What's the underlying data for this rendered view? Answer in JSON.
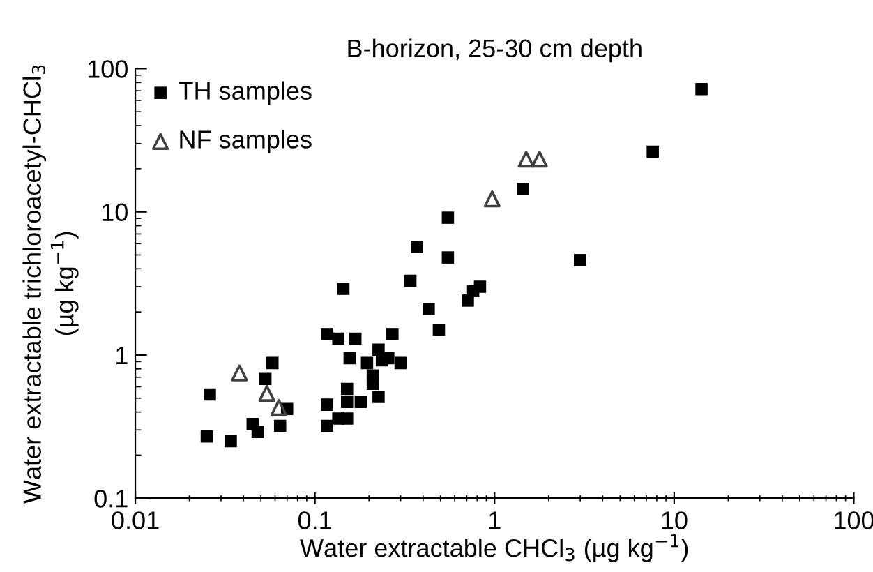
{
  "chart_data": {
    "type": "scatter",
    "title": "B-horizon, 25-30 cm depth",
    "xlabel": "Water extractable CHCl$_{3}$ (µg kg$^{−1}$)",
    "ylabel": "Water extractable trichloroacetyl-CHCl$_{3}$\n(µg kg$^{−1}$)",
    "log": "xy",
    "xlim": [
      0.01,
      100
    ],
    "ylim": [
      0.1,
      100
    ],
    "xticks": [
      0.01,
      0.1,
      1,
      10,
      100
    ],
    "yticks": [
      0.1,
      1,
      10,
      100
    ],
    "grid": false,
    "legend": "top left",
    "series": [
      {
        "name": "TH samples",
        "color": "#000000",
        "marker": "square",
        "x": [
          14.2,
          7.6,
          1.44,
          2.99,
          0.55,
          0.37,
          0.55,
          0.34,
          0.83,
          0.76,
          0.71,
          0.43,
          0.49,
          0.144,
          0.117,
          0.135,
          0.168,
          0.27,
          0.226,
          0.156,
          0.195,
          0.236,
          0.256,
          0.3,
          0.21,
          0.21,
          0.151,
          0.117,
          0.151,
          0.18,
          0.226,
          0.135,
          0.151,
          0.117,
          0.058,
          0.053,
          0.026,
          0.07,
          0.045,
          0.048,
          0.064,
          0.025,
          0.034
        ],
        "values": [
          72,
          26.3,
          14.4,
          4.6,
          9.1,
          5.7,
          4.8,
          3.3,
          3.0,
          2.8,
          2.4,
          2.1,
          1.5,
          2.9,
          1.4,
          1.3,
          1.3,
          1.4,
          1.09,
          0.95,
          0.88,
          0.92,
          0.95,
          0.88,
          0.72,
          0.63,
          0.58,
          0.45,
          0.47,
          0.47,
          0.51,
          0.36,
          0.36,
          0.32,
          0.88,
          0.68,
          0.53,
          0.42,
          0.33,
          0.29,
          0.32,
          0.27,
          0.25
        ]
      },
      {
        "name": "NF samples",
        "color": "#404040",
        "marker": "triangle",
        "x": [
          0.038,
          0.054,
          0.063,
          0.97,
          1.5,
          1.78
        ],
        "values": [
          0.75,
          0.54,
          0.43,
          12.3,
          23.3,
          23.3
        ]
      }
    ]
  }
}
